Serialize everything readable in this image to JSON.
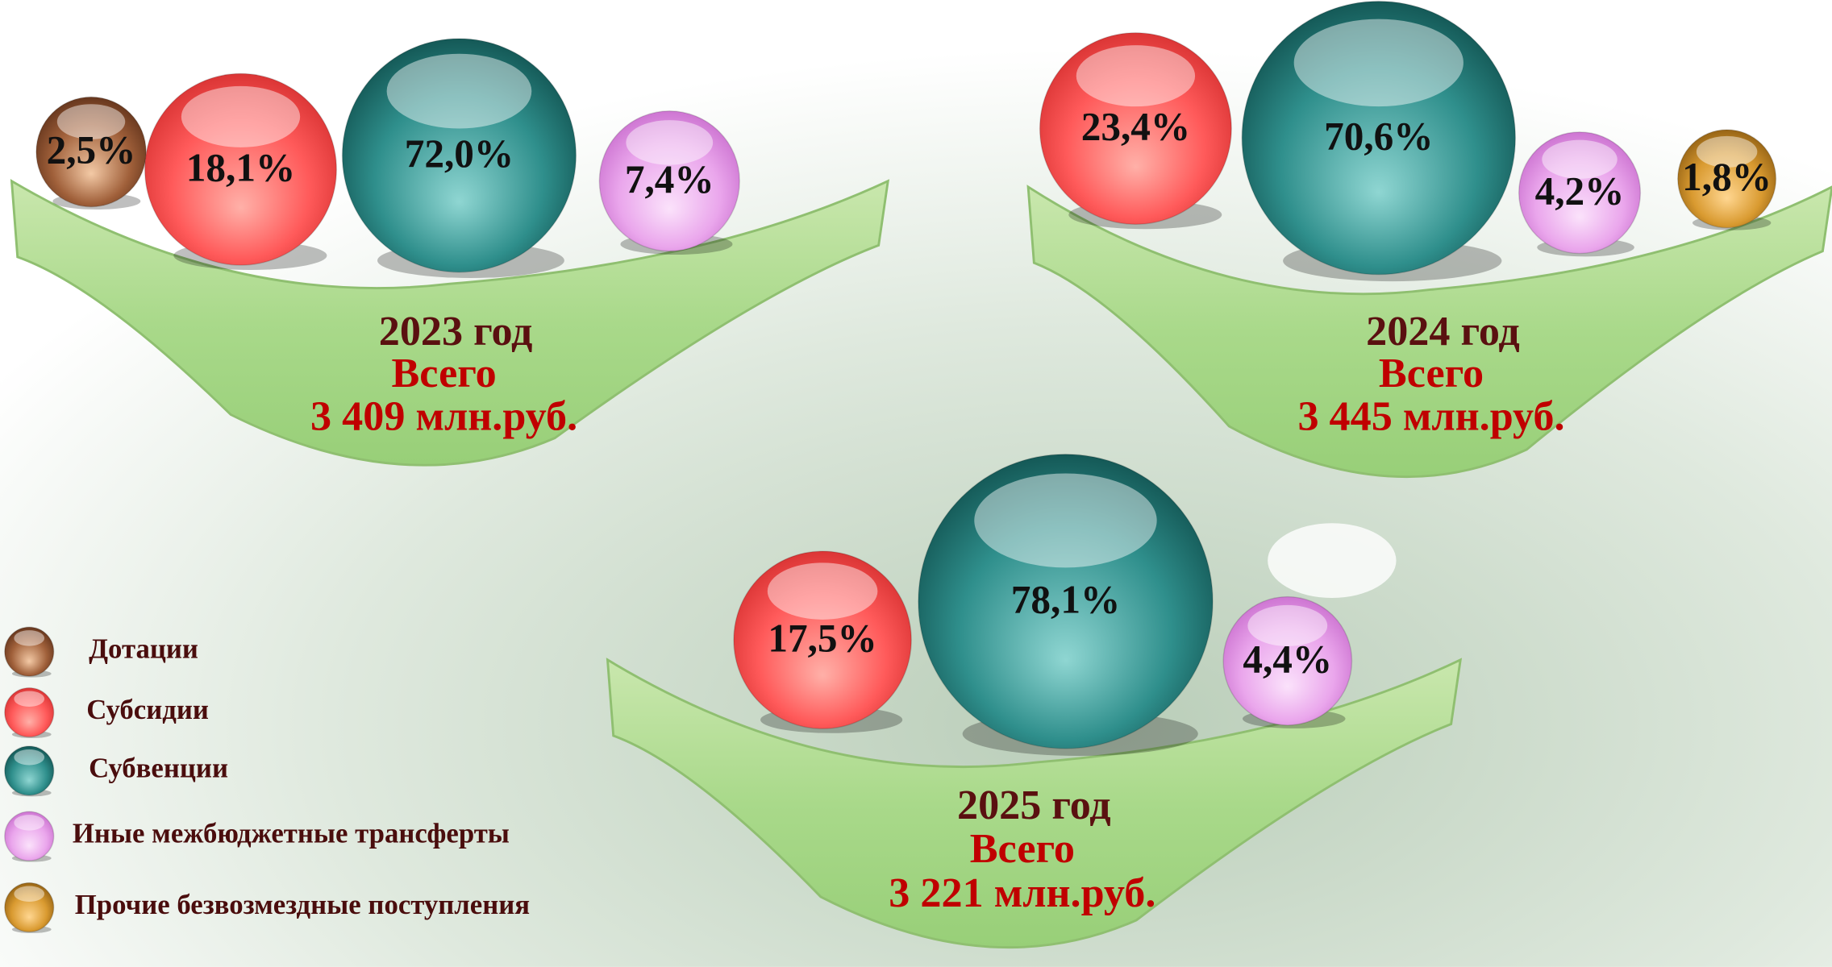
{
  "legend": [
    "Дотации",
    "Субсидии",
    "Субвенции",
    "Иные межбюджетные трансферты",
    "Прочие безвозмездные поступления"
  ],
  "panels": [
    {
      "year": "2023 год",
      "total_caption": "Всего",
      "total": "3 409 млн.руб.",
      "items": [
        "2,5%",
        "18,1%",
        "72,0%",
        "7,4%"
      ]
    },
    {
      "year": "2024 год",
      "total_caption": "Всего",
      "total": "3 445 млн.руб.",
      "items": [
        "23,4%",
        "70,6%",
        "4,2%",
        "1,8%"
      ]
    },
    {
      "year": "2025 год",
      "total_caption": "Всего",
      "total": "3 221 млн.руб.",
      "items": [
        "17,5%",
        "78,1%",
        "4,4%"
      ]
    }
  ]
}
